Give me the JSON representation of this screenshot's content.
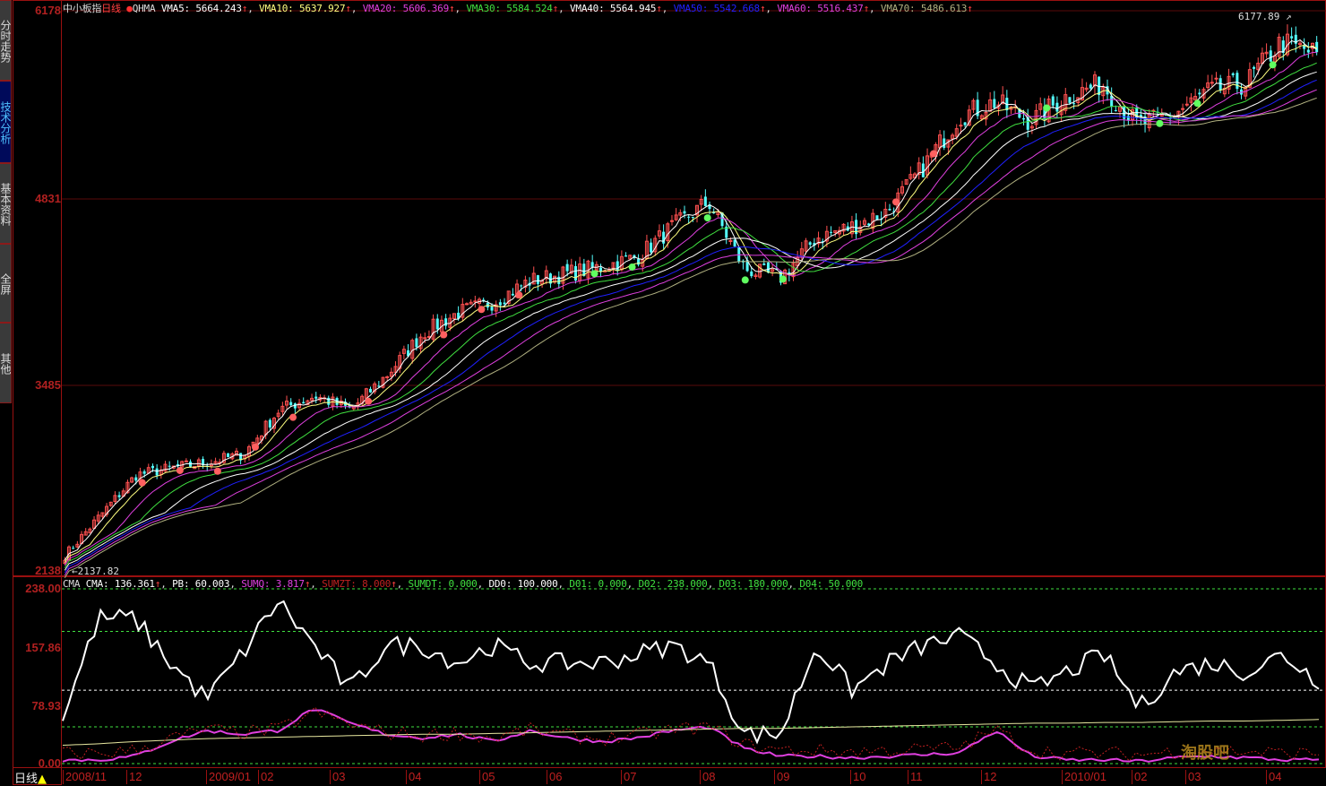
{
  "sidebar": {
    "tabs": [
      {
        "label": "分时走势",
        "active": false
      },
      {
        "label": "技术分析",
        "active": true
      },
      {
        "label": "基本资料",
        "active": false
      },
      {
        "label": "全屏",
        "active": false
      },
      {
        "label": "其他",
        "active": false
      }
    ]
  },
  "header": {
    "name": "中小板指",
    "period": "日线",
    "indicator": "QHMA",
    "ma": [
      {
        "label": "VMA5: 5664.243",
        "color": "#ffffff"
      },
      {
        "label": "VMA10: 5637.927",
        "color": "#ffff80"
      },
      {
        "label": "VMA20: 5606.369",
        "color": "#e040e0"
      },
      {
        "label": "VMA30: 5584.524",
        "color": "#40e040"
      },
      {
        "label": "VMA40: 5564.945",
        "color": "#ffffff"
      },
      {
        "label": "VMA50: 5542.668",
        "color": "#2020ff"
      },
      {
        "label": "VMA60: 5516.437",
        "color": "#e040e0"
      },
      {
        "label": "VMA70: 5486.613",
        "color": "#b0b080"
      }
    ],
    "up_arrow": "↑"
  },
  "price_axis": {
    "ticks": [
      "6178",
      "4831",
      "3485",
      "2138"
    ],
    "max_label": "6177.89",
    "min_label": "2137.82"
  },
  "indicator_panel": {
    "name": "CMA",
    "values": [
      {
        "label": "CMA: 136.361",
        "color": "#ffffff",
        "arrow": true
      },
      {
        "label": "PB: 60.003",
        "color": "#ffffff",
        "arrow": false
      },
      {
        "label": "SUMQ: 3.817",
        "color": "#e040e0",
        "arrow": true
      },
      {
        "label": "SUMZT: 8.000",
        "color": "#c02020",
        "arrow": true
      },
      {
        "label": "SUMDT: 0.000",
        "color": "#40e040",
        "arrow": false
      },
      {
        "label": "DD0: 100.000",
        "color": "#ffffff",
        "arrow": false
      },
      {
        "label": "D01: 0.000",
        "color": "#40e040",
        "arrow": false
      },
      {
        "label": "D02: 238.000",
        "color": "#40e040",
        "arrow": false
      },
      {
        "label": "D03: 180.000",
        "color": "#40e040",
        "arrow": false
      },
      {
        "label": "D04: 50.000",
        "color": "#40e040",
        "arrow": false
      }
    ],
    "ticks": [
      "238.00",
      "157.86",
      "78.93",
      "0.00"
    ]
  },
  "footer": {
    "period_label": "日线",
    "months": [
      "2008/11",
      "12",
      "2009/01",
      "02",
      "03",
      "04",
      "05",
      "06",
      "07",
      "08",
      "09",
      "10",
      "11",
      "12",
      "2010/01",
      "02",
      "03",
      "04"
    ]
  },
  "watermark": "淘股吧",
  "chart_data": [
    {
      "type": "candlestick",
      "ylim": [
        2138,
        6178
      ],
      "high": 6177.89,
      "low": 2137.82,
      "close_sampled": [
        2248,
        2539,
        2830,
        2880,
        2920,
        2980,
        3300,
        3400,
        3300,
        3550,
        3850,
        4000,
        4080,
        4230,
        4280,
        4330,
        4400,
        4620,
        4800,
        4316,
        4250,
        4540,
        4620,
        4730,
        5050,
        5415,
        5520,
        5380,
        5560,
        5650,
        5350,
        5430,
        5600,
        5650,
        5950,
        5868
      ],
      "moving_averages": [
        5,
        10,
        20,
        30,
        40,
        50,
        60,
        70
      ]
    },
    {
      "type": "line",
      "ylim": [
        0,
        238
      ],
      "series": [
        {
          "name": "CMA",
          "color": "#ffffff",
          "values": [
            63,
            198,
            198,
            137,
            88,
            149,
            222,
            161,
            100,
            161,
            161,
            137,
            161,
            137,
            137,
            137,
            149,
            161,
            137,
            40,
            40,
            161,
            100,
            137,
            161,
            173,
            137,
            100,
            125,
            149,
            76,
            125,
            137,
            125,
            149,
            112
          ]
        },
        {
          "name": "SUMQ",
          "color": "#e040e0",
          "values": [
            5,
            5,
            10,
            30,
            45,
            40,
            45,
            75,
            55,
            40,
            35,
            40,
            30,
            45,
            35,
            30,
            35,
            45,
            50,
            20,
            10,
            10,
            8,
            10,
            12,
            15,
            45,
            10,
            5,
            5,
            3,
            8,
            10,
            8,
            5,
            5
          ]
        },
        {
          "name": "PB",
          "color": "#e8e8a0",
          "values": [
            25,
            27,
            30,
            32,
            34,
            35,
            36,
            37,
            38,
            39,
            40,
            40,
            41,
            42,
            43,
            44,
            45,
            46,
            47,
            48,
            48,
            49,
            50,
            51,
            52,
            53,
            54,
            55,
            55,
            56,
            56,
            57,
            58,
            58,
            59,
            60
          ]
        }
      ],
      "reference_levels": [
        238,
        180,
        100,
        50,
        0
      ]
    }
  ]
}
